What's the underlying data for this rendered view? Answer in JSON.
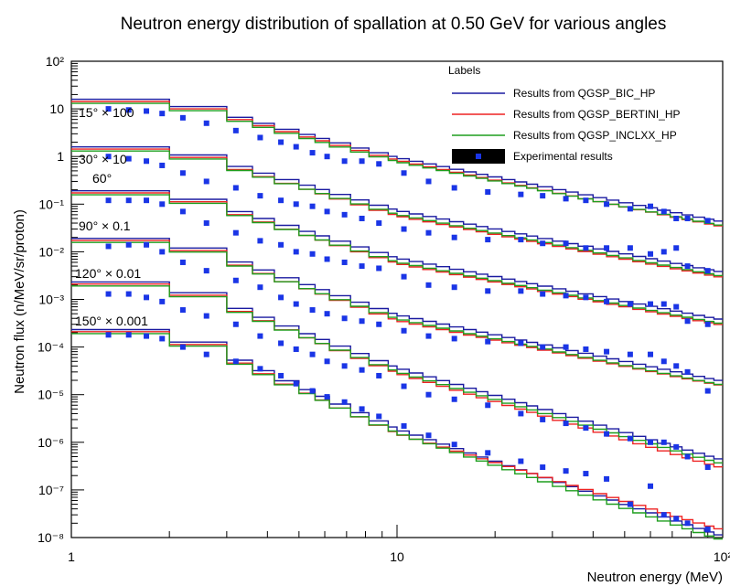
{
  "chart_data": {
    "type": "line",
    "title": "Neutron energy distribution of spallation at 0.50 GeV for various angles",
    "xlabel": "Neutron energy (MeV)",
    "ylabel": "Neutron flux (n/MeV/sr/proton)",
    "xscale": "log",
    "yscale": "log",
    "xlim": [
      1,
      100
    ],
    "ylim": [
      1e-08,
      100
    ],
    "x_ticks": [
      {
        "value": 1,
        "label": "1"
      },
      {
        "value": 10,
        "label": "10"
      },
      {
        "value": 100,
        "label": "10²"
      }
    ],
    "y_ticks": [
      {
        "value": 100,
        "label": "10²"
      },
      {
        "value": 10,
        "label": "10"
      },
      {
        "value": 1,
        "label": "1"
      },
      {
        "value": 0.1,
        "label": "10⁻¹"
      },
      {
        "value": 0.01,
        "label": "10⁻²"
      },
      {
        "value": 0.001,
        "label": "10⁻³"
      },
      {
        "value": 0.0001,
        "label": "10⁻⁴"
      },
      {
        "value": 1e-05,
        "label": "10⁻⁵"
      },
      {
        "value": 1e-06,
        "label": "10⁻⁶"
      },
      {
        "value": 1e-07,
        "label": "10⁻⁷"
      },
      {
        "value": 1e-08,
        "label": "10⁻⁸"
      }
    ],
    "grid": false,
    "legend": {
      "title": "Labels",
      "position": "top-right",
      "entries": [
        {
          "label": "Results from QGSP_BIC_HP",
          "color": "#1a1aa0",
          "kind": "line"
        },
        {
          "label": "Results from QGSP_BERTINI_HP",
          "color": "#ee2222",
          "kind": "line"
        },
        {
          "label": "Results from QGSP_INCLXX_HP",
          "color": "#1e9e1e",
          "kind": "line"
        },
        {
          "label": "Experimental results",
          "color": "#1a35e6",
          "kind": "marker"
        }
      ]
    },
    "bin_edges": [
      1,
      2,
      3,
      3.6,
      4.2,
      5,
      5.6,
      6.2,
      7.2,
      8.2,
      9.4,
      10,
      10.9,
      12,
      13.2,
      14.5,
      16,
      17.5,
      19,
      21,
      23,
      25,
      27,
      30,
      33,
      36,
      40,
      44,
      48,
      53,
      58,
      63,
      69,
      75,
      81,
      88,
      94,
      100
    ],
    "groups": [
      {
        "label": "15° × 100",
        "mc_at_1": 15,
        "mc_at_10": 0.9,
        "mc_at_100": 0.04,
        "bertini_at_10": 0.88,
        "bertini_at_100": 0.035,
        "exp_x": [
          1.3,
          1.5,
          1.7,
          1.9,
          2.2,
          2.6,
          3.2,
          3.8,
          4.4,
          4.9,
          5.5,
          6.1,
          6.9,
          7.8,
          8.8,
          10.5,
          12.5,
          15,
          19,
          24,
          28,
          33,
          38,
          44,
          52,
          60,
          66,
          72,
          78,
          90
        ],
        "exp_y": [
          10,
          9.5,
          9,
          8,
          6.5,
          5,
          3.5,
          2.5,
          2,
          1.6,
          1.2,
          1.0,
          0.8,
          0.8,
          0.7,
          0.45,
          0.3,
          0.22,
          0.18,
          0.16,
          0.15,
          0.13,
          0.12,
          0.1,
          0.08,
          0.09,
          0.07,
          0.05,
          0.05,
          0.045
        ]
      },
      {
        "label": "30° × 10",
        "mc_at_1": 1.5,
        "mc_at_10": 0.07,
        "mc_at_100": 0.0035,
        "bertini_at_10": 0.06,
        "bertini_at_100": 0.003,
        "exp_x": [
          1.3,
          1.5,
          1.7,
          1.9,
          2.2,
          2.6,
          3.2,
          3.8,
          4.4,
          4.9,
          5.5,
          6.1,
          6.9,
          7.8,
          8.8,
          10.5,
          12.5,
          15,
          19,
          24,
          28,
          33,
          38,
          44,
          52,
          60,
          66,
          72,
          78,
          90
        ],
        "exp_y": [
          1.0,
          0.9,
          0.8,
          0.65,
          0.45,
          0.3,
          0.22,
          0.15,
          0.12,
          0.1,
          0.09,
          0.07,
          0.06,
          0.05,
          0.04,
          0.03,
          0.025,
          0.02,
          0.018,
          0.018,
          0.015,
          0.015,
          0.012,
          0.012,
          0.012,
          0.009,
          0.01,
          0.012,
          0.005,
          0.004
        ]
      },
      {
        "label": "60°",
        "mc_at_1": 0.18,
        "mc_at_10": 0.007,
        "mc_at_100": 0.00035,
        "bertini_at_10": 0.006,
        "bertini_at_100": 0.0003,
        "exp_x": [
          1.3,
          1.5,
          1.7,
          1.9,
          2.2,
          2.6,
          3.2,
          3.8,
          4.4,
          4.9,
          5.5,
          6.1,
          6.9,
          7.8,
          8.8,
          10.5,
          12.5,
          15,
          19,
          24,
          28,
          33,
          38,
          44,
          52,
          60,
          66,
          72,
          78,
          90
        ],
        "exp_y": [
          0.12,
          0.12,
          0.12,
          0.1,
          0.07,
          0.04,
          0.025,
          0.017,
          0.014,
          0.01,
          0.009,
          0.007,
          0.006,
          0.005,
          0.0045,
          0.003,
          0.002,
          0.0018,
          0.0015,
          0.0015,
          0.0013,
          0.0012,
          0.0011,
          0.0009,
          0.0008,
          0.0008,
          0.0008,
          0.0007,
          0.00035,
          0.0003
        ]
      },
      {
        "label": "90° × 0.1",
        "mc_at_1": 0.018,
        "mc_at_10": 0.00045,
        "mc_at_100": 1.8e-05,
        "bertini_at_10": 0.00038,
        "bertini_at_100": 1.6e-05,
        "exp_x": [
          1.3,
          1.5,
          1.7,
          1.9,
          2.2,
          2.6,
          3.2,
          3.8,
          4.4,
          4.9,
          5.5,
          6.1,
          6.9,
          7.8,
          8.8,
          10.5,
          12.5,
          15,
          19,
          24,
          28,
          33,
          38,
          44,
          52,
          60,
          66,
          72,
          78,
          90
        ],
        "exp_y": [
          0.013,
          0.014,
          0.014,
          0.01,
          0.006,
          0.004,
          0.0025,
          0.0018,
          0.0011,
          0.0008,
          0.0006,
          0.0005,
          0.0004,
          0.00035,
          0.0003,
          0.00022,
          0.00017,
          0.00015,
          0.00013,
          0.00012,
          0.0001,
          0.0001,
          9e-05,
          8e-05,
          7e-05,
          7e-05,
          5e-05,
          4e-05,
          3e-05,
          1.2e-05
        ]
      },
      {
        "label": "120° × 0.01",
        "mc_at_1": 0.0022,
        "mc_at_10": 3.5e-05,
        "mc_at_100": 4e-07,
        "bertini_at_10": 3e-05,
        "bertini_at_100": 3e-07,
        "exp_x": [
          1.3,
          1.5,
          1.7,
          1.9,
          2.2,
          2.6,
          3.2,
          3.8,
          4.4,
          4.9,
          5.5,
          6.1,
          6.9,
          7.8,
          8.8,
          10.5,
          12.5,
          15,
          19,
          24,
          28,
          33,
          38,
          44,
          52,
          60,
          66,
          72,
          78,
          90
        ],
        "exp_y": [
          0.0013,
          0.0013,
          0.0011,
          0.0009,
          0.0006,
          0.00045,
          0.0003,
          0.00017,
          0.00012,
          9e-05,
          7e-05,
          5e-05,
          4e-05,
          3.3e-05,
          2.5e-05,
          1.5e-05,
          1e-05,
          8e-06,
          6e-06,
          4e-06,
          3e-06,
          2.5e-06,
          2e-06,
          1.5e-06,
          1.2e-06,
          1e-06,
          1e-06,
          8e-07,
          5e-07,
          3e-07
        ]
      },
      {
        "label": "150° × 0.001",
        "mc_at_1": 0.00022,
        "mc_at_10": 1.8e-06,
        "mc_at_100": 1e-08,
        "bertini_at_10": 1.6e-06,
        "bertini_at_100": 1.5e-08,
        "exp_x": [
          1.3,
          1.5,
          1.7,
          1.9,
          2.2,
          2.6,
          3.2,
          3.8,
          4.4,
          4.9,
          5.5,
          6.1,
          6.9,
          7.8,
          8.8,
          10.5,
          12.5,
          15,
          19,
          24,
          28,
          33,
          38,
          44,
          52,
          60,
          66,
          72,
          78,
          90
        ],
        "exp_y": [
          0.00018,
          0.00018,
          0.00017,
          0.00015,
          0.0001,
          7e-05,
          5e-05,
          3.5e-05,
          2.5e-05,
          1.7e-05,
          1.2e-05,
          9e-06,
          7e-06,
          5e-06,
          3.5e-06,
          2.2e-06,
          1.4e-06,
          9e-07,
          6e-07,
          4e-07,
          3e-07,
          2.5e-07,
          2.2e-07,
          1.7e-07,
          5e-08,
          1.2e-07,
          3e-08,
          2.5e-08,
          2e-08,
          1.5e-08
        ]
      }
    ]
  }
}
